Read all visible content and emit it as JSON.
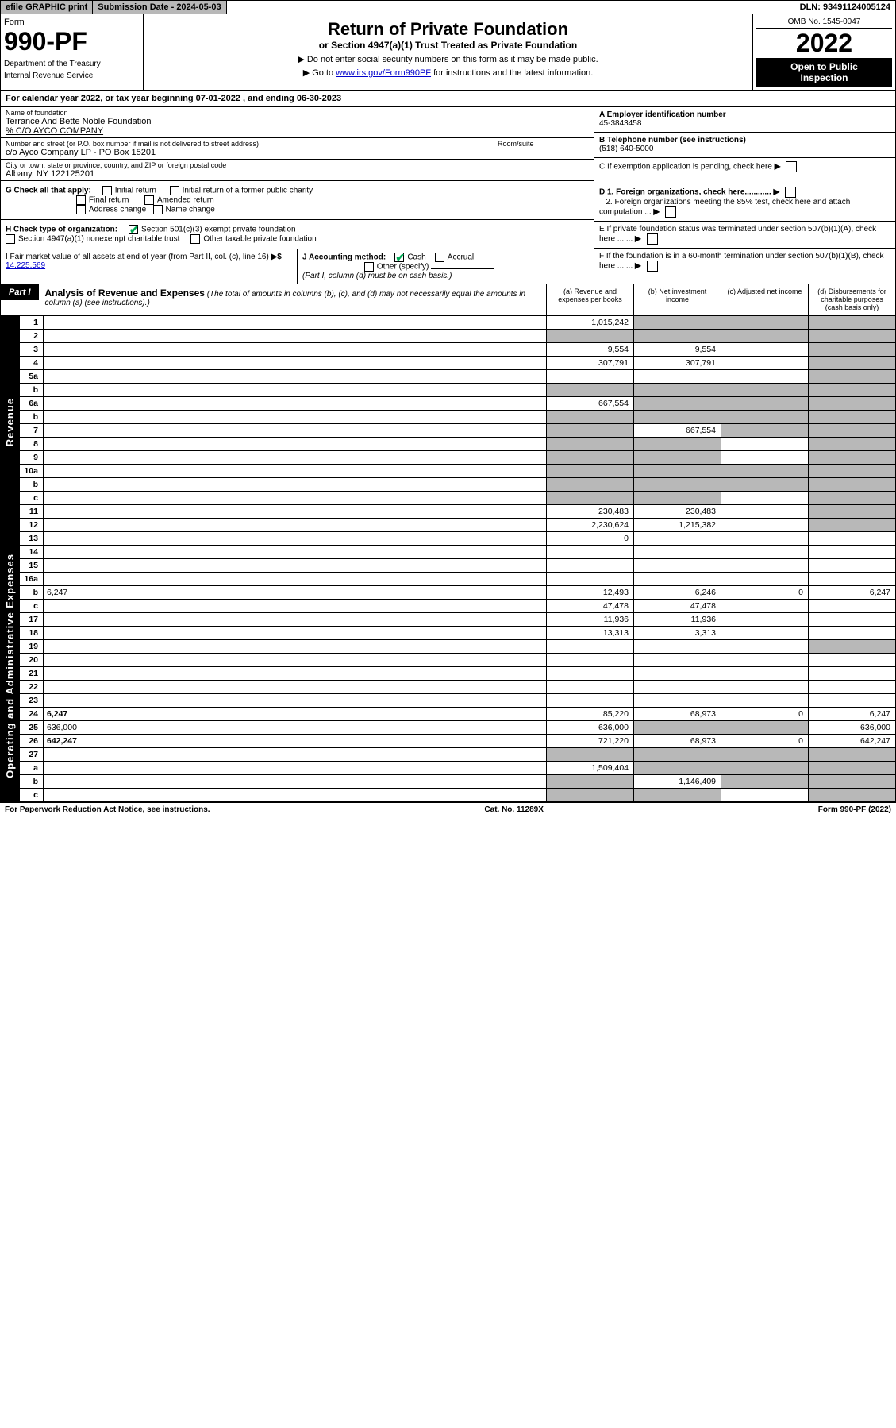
{
  "top": {
    "efile": "efile GRAPHIC print",
    "sub_label": "Submission Date - 2024-05-03",
    "dln": "DLN: 93491124005124"
  },
  "header": {
    "form_word": "Form",
    "form_num": "990-PF",
    "dept1": "Department of the Treasury",
    "dept2": "Internal Revenue Service",
    "title": "Return of Private Foundation",
    "subtitle": "or Section 4947(a)(1) Trust Treated as Private Foundation",
    "note1": "▶ Do not enter social security numbers on this form as it may be made public.",
    "note2_pre": "▶ Go to ",
    "note2_link": "www.irs.gov/Form990PF",
    "note2_post": " for instructions and the latest information.",
    "omb": "OMB No. 1545-0047",
    "year": "2022",
    "open1": "Open to Public",
    "open2": "Inspection"
  },
  "cal_year": {
    "pre": "For calendar year 2022, or tax year beginning ",
    "begin": "07-01-2022",
    "mid": " , and ending ",
    "end": "06-30-2023"
  },
  "name_block": {
    "lbl": "Name of foundation",
    "name": "Terrance And Bette Noble Foundation",
    "care_of": "% C/O AYCO COMPANY",
    "addr_lbl": "Number and street (or P.O. box number if mail is not delivered to street address)",
    "addr": "c/o Ayco Company LP - PO Box 15201",
    "room_lbl": "Room/suite",
    "city_lbl": "City or town, state or province, country, and ZIP or foreign postal code",
    "city": "Albany, NY  122125201"
  },
  "right_block": {
    "a_lbl": "A Employer identification number",
    "a_val": "45-3843458",
    "b_lbl": "B Telephone number (see instructions)",
    "b_val": "(518) 640-5000",
    "c_lbl": "C If exemption application is pending, check here",
    "d1": "D 1. Foreign organizations, check here............",
    "d2": "2. Foreign organizations meeting the 85% test, check here and attach computation ...",
    "e_lbl": "E  If private foundation status was terminated under section 507(b)(1)(A), check here .......",
    "f_lbl": "F  If the foundation is in a 60-month termination under section 507(b)(1)(B), check here .......",
    "arrow": "▶"
  },
  "g": {
    "lbl": "G Check all that apply:",
    "opts": [
      "Initial return",
      "Final return",
      "Address change",
      "Initial return of a former public charity",
      "Amended return",
      "Name change"
    ]
  },
  "h": {
    "lbl": "H Check type of organization:",
    "o1": "Section 501(c)(3) exempt private foundation",
    "o2": "Section 4947(a)(1) nonexempt charitable trust",
    "o3": "Other taxable private foundation"
  },
  "i": {
    "lbl": "I Fair market value of all assets at end of year (from Part II, col. (c), line 16)",
    "arrow": "▶$",
    "val": "14,225,569"
  },
  "j": {
    "lbl": "J Accounting method:",
    "cash": "Cash",
    "accrual": "Accrual",
    "other": "Other (specify)",
    "note": "(Part I, column (d) must be on cash basis.)"
  },
  "part1": {
    "label": "Part I",
    "title": "Analysis of Revenue and Expenses",
    "title_note": "(The total of amounts in columns (b), (c), and (d) may not necessarily equal the amounts in column (a) (see instructions).)",
    "col_a": "(a)   Revenue and expenses per books",
    "col_b": "(b)    Net investment income",
    "col_c": "(c)    Adjusted net income",
    "col_d": "(d)   Disbursements for charitable purposes (cash basis only)"
  },
  "side_labels": {
    "revenue": "Revenue",
    "expenses": "Operating and Administrative Expenses"
  },
  "rows": [
    {
      "n": "1",
      "d": "",
      "a": "1,015,242",
      "b": "",
      "c": "",
      "ga": false,
      "gb": true,
      "gc": true,
      "gd": true
    },
    {
      "n": "2",
      "d": "",
      "a": "",
      "b": "",
      "c": "",
      "ga": true,
      "gb": true,
      "gc": true,
      "gd": true
    },
    {
      "n": "3",
      "d": "",
      "a": "9,554",
      "b": "9,554",
      "c": "",
      "ga": false,
      "gb": false,
      "gc": false,
      "gd": true
    },
    {
      "n": "4",
      "d": "",
      "a": "307,791",
      "b": "307,791",
      "c": "",
      "ga": false,
      "gb": false,
      "gc": false,
      "gd": true
    },
    {
      "n": "5a",
      "d": "",
      "a": "",
      "b": "",
      "c": "",
      "ga": false,
      "gb": false,
      "gc": false,
      "gd": true
    },
    {
      "n": "b",
      "d": "",
      "a": "",
      "b": "",
      "c": "",
      "ga": true,
      "gb": true,
      "gc": true,
      "gd": true
    },
    {
      "n": "6a",
      "d": "",
      "a": "667,554",
      "b": "",
      "c": "",
      "ga": false,
      "gb": true,
      "gc": true,
      "gd": true
    },
    {
      "n": "b",
      "d": "",
      "a": "",
      "b": "",
      "c": "",
      "ga": true,
      "gb": true,
      "gc": true,
      "gd": true
    },
    {
      "n": "7",
      "d": "",
      "a": "",
      "b": "667,554",
      "c": "",
      "ga": true,
      "gb": false,
      "gc": true,
      "gd": true
    },
    {
      "n": "8",
      "d": "",
      "a": "",
      "b": "",
      "c": "",
      "ga": true,
      "gb": true,
      "gc": false,
      "gd": true
    },
    {
      "n": "9",
      "d": "",
      "a": "",
      "b": "",
      "c": "",
      "ga": true,
      "gb": true,
      "gc": false,
      "gd": true
    },
    {
      "n": "10a",
      "d": "",
      "a": "",
      "b": "",
      "c": "",
      "ga": true,
      "gb": true,
      "gc": true,
      "gd": true
    },
    {
      "n": "b",
      "d": "",
      "a": "",
      "b": "",
      "c": "",
      "ga": true,
      "gb": true,
      "gc": true,
      "gd": true
    },
    {
      "n": "c",
      "d": "",
      "a": "",
      "b": "",
      "c": "",
      "ga": true,
      "gb": true,
      "gc": false,
      "gd": true
    },
    {
      "n": "11",
      "d": "",
      "a": "230,483",
      "b": "230,483",
      "c": "",
      "ga": false,
      "gb": false,
      "gc": false,
      "gd": true
    },
    {
      "n": "12",
      "d": "",
      "a": "2,230,624",
      "b": "1,215,382",
      "c": "",
      "bold": true,
      "ga": false,
      "gb": false,
      "gc": false,
      "gd": true
    },
    {
      "n": "13",
      "d": "",
      "a": "0",
      "b": "",
      "c": "",
      "sec": "exp",
      "ga": false,
      "gb": false,
      "gc": false,
      "gd": false
    },
    {
      "n": "14",
      "d": "",
      "a": "",
      "b": "",
      "c": "",
      "ga": false,
      "gb": false,
      "gc": false,
      "gd": false
    },
    {
      "n": "15",
      "d": "",
      "a": "",
      "b": "",
      "c": "",
      "ga": false,
      "gb": false,
      "gc": false,
      "gd": false
    },
    {
      "n": "16a",
      "d": "",
      "a": "",
      "b": "",
      "c": "",
      "ga": false,
      "gb": false,
      "gc": false,
      "gd": false
    },
    {
      "n": "b",
      "d": "6,247",
      "a": "12,493",
      "b": "6,246",
      "c": "0",
      "ga": false,
      "gb": false,
      "gc": false,
      "gd": false
    },
    {
      "n": "c",
      "d": "",
      "a": "47,478",
      "b": "47,478",
      "c": "",
      "ga": false,
      "gb": false,
      "gc": false,
      "gd": false
    },
    {
      "n": "17",
      "d": "",
      "a": "11,936",
      "b": "11,936",
      "c": "",
      "ga": false,
      "gb": false,
      "gc": false,
      "gd": false
    },
    {
      "n": "18",
      "d": "",
      "a": "13,313",
      "b": "3,313",
      "c": "",
      "ga": false,
      "gb": false,
      "gc": false,
      "gd": false
    },
    {
      "n": "19",
      "d": "",
      "a": "",
      "b": "",
      "c": "",
      "ga": false,
      "gb": false,
      "gc": false,
      "gd": true
    },
    {
      "n": "20",
      "d": "",
      "a": "",
      "b": "",
      "c": "",
      "ga": false,
      "gb": false,
      "gc": false,
      "gd": false
    },
    {
      "n": "21",
      "d": "",
      "a": "",
      "b": "",
      "c": "",
      "ga": false,
      "gb": false,
      "gc": false,
      "gd": false
    },
    {
      "n": "22",
      "d": "",
      "a": "",
      "b": "",
      "c": "",
      "ga": false,
      "gb": false,
      "gc": false,
      "gd": false
    },
    {
      "n": "23",
      "d": "",
      "a": "",
      "b": "",
      "c": "",
      "ga": false,
      "gb": false,
      "gc": false,
      "gd": false
    },
    {
      "n": "24",
      "d": "6,247",
      "a": "85,220",
      "b": "68,973",
      "c": "0",
      "bold": true,
      "ga": false,
      "gb": false,
      "gc": false,
      "gd": false
    },
    {
      "n": "25",
      "d": "636,000",
      "a": "636,000",
      "b": "",
      "c": "",
      "ga": false,
      "gb": true,
      "gc": true,
      "gd": false
    },
    {
      "n": "26",
      "d": "642,247",
      "a": "721,220",
      "b": "68,973",
      "c": "0",
      "bold": true,
      "ga": false,
      "gb": false,
      "gc": false,
      "gd": false
    },
    {
      "n": "27",
      "d": "",
      "a": "",
      "b": "",
      "c": "",
      "ga": true,
      "gb": true,
      "gc": true,
      "gd": true
    },
    {
      "n": "a",
      "d": "",
      "a": "1,509,404",
      "b": "",
      "c": "",
      "bold": true,
      "ga": false,
      "gb": true,
      "gc": true,
      "gd": true
    },
    {
      "n": "b",
      "d": "",
      "a": "",
      "b": "1,146,409",
      "c": "",
      "bold": true,
      "ga": true,
      "gb": false,
      "gc": true,
      "gd": true
    },
    {
      "n": "c",
      "d": "",
      "a": "",
      "b": "",
      "c": "",
      "bold": true,
      "ga": true,
      "gb": true,
      "gc": false,
      "gd": true
    }
  ],
  "footer": {
    "left": "For Paperwork Reduction Act Notice, see instructions.",
    "mid": "Cat. No. 11289X",
    "right": "Form 990-PF (2022)"
  }
}
